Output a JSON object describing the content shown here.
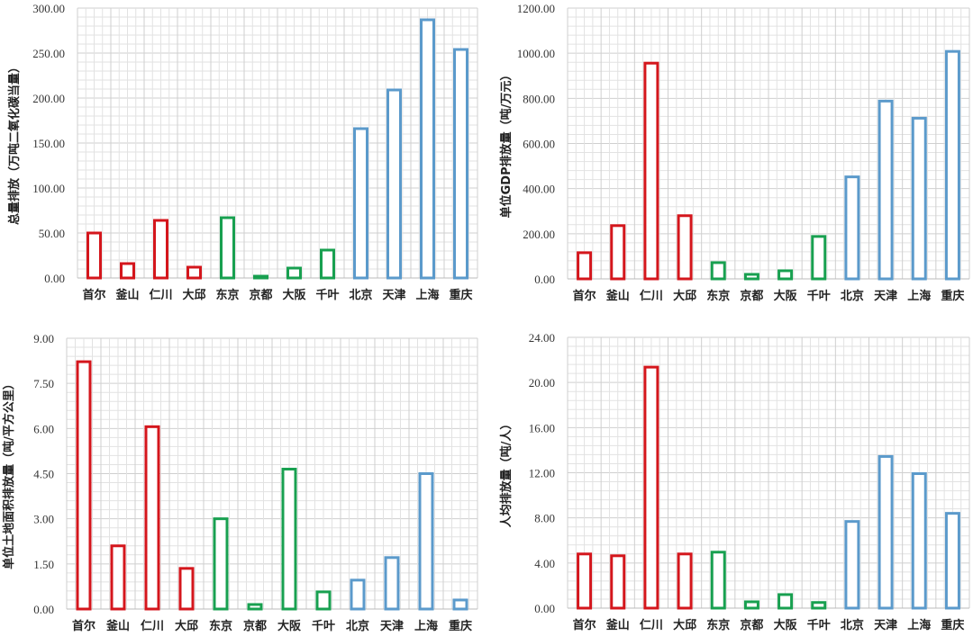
{
  "colors": {
    "korea": "#d4161c",
    "japan": "#18a050",
    "china": "#5b9acb",
    "grid": "#e2e2e2",
    "grid_major": "#cfcfcf"
  },
  "chart_data": [
    {
      "type": "bar",
      "title": "",
      "ylabel": "总量排放（万吨二氧化碳当量）",
      "categories": [
        "首尔",
        "釜山",
        "仁川",
        "大邱",
        "东京",
        "京都",
        "大阪",
        "千叶",
        "北京",
        "天津",
        "上海",
        "重庆"
      ],
      "groups": [
        "korea",
        "korea",
        "korea",
        "korea",
        "japan",
        "japan",
        "japan",
        "japan",
        "china",
        "china",
        "china",
        "china"
      ],
      "values": [
        50,
        16,
        64,
        12,
        67,
        2,
        11,
        31,
        166,
        209,
        287,
        254
      ],
      "ylim": [
        0,
        300
      ],
      "yticks": [
        "0.00",
        "50.00",
        "100.00",
        "150.00",
        "200.00",
        "250.00",
        "300.00"
      ],
      "grid": true
    },
    {
      "type": "bar",
      "title": "",
      "ylabel": "单位GDP排放量（吨/万元）",
      "categories": [
        "首尔",
        "釜山",
        "仁川",
        "大邱",
        "东京",
        "京都",
        "大阪",
        "千叶",
        "北京",
        "天津",
        "上海",
        "重庆"
      ],
      "groups": [
        "korea",
        "korea",
        "korea",
        "korea",
        "japan",
        "japan",
        "japan",
        "japan",
        "china",
        "china",
        "china",
        "china"
      ],
      "values": [
        116,
        236,
        956,
        280,
        72,
        20,
        36,
        188,
        452,
        788,
        712,
        1008
      ],
      "ylim": [
        0,
        1200
      ],
      "yticks": [
        "0.00",
        "200.00",
        "400.00",
        "600.00",
        "800.00",
        "1000.00",
        "1200.00"
      ],
      "grid": true
    },
    {
      "type": "bar",
      "title": "",
      "ylabel": "单位土地面积排放量（吨/平方公里）",
      "categories": [
        "首尔",
        "釜山",
        "仁川",
        "大邱",
        "东京",
        "京都",
        "大阪",
        "千叶",
        "北京",
        "天津",
        "上海",
        "重庆"
      ],
      "groups": [
        "korea",
        "korea",
        "korea",
        "korea",
        "japan",
        "japan",
        "japan",
        "japan",
        "china",
        "china",
        "china",
        "china"
      ],
      "values": [
        8.22,
        2.1,
        6.06,
        1.35,
        3.0,
        0.15,
        4.65,
        0.57,
        0.96,
        1.71,
        4.5,
        0.3
      ],
      "ylim": [
        0,
        9
      ],
      "yticks": [
        "0.00",
        "1.50",
        "3.00",
        "4.50",
        "6.00",
        "7.50",
        "9.00"
      ],
      "grid": true
    },
    {
      "type": "bar",
      "title": "",
      "ylabel": "人均排放量（吨/人）",
      "categories": [
        "首尔",
        "釜山",
        "仁川",
        "大邱",
        "东京",
        "京都",
        "大阪",
        "千叶",
        "北京",
        "天津",
        "上海",
        "重庆"
      ],
      "groups": [
        "korea",
        "korea",
        "korea",
        "korea",
        "japan",
        "japan",
        "japan",
        "japan",
        "china",
        "china",
        "china",
        "china"
      ],
      "values": [
        4.8,
        4.64,
        21.36,
        4.8,
        4.96,
        0.56,
        1.2,
        0.5,
        7.68,
        13.44,
        11.92,
        8.4
      ],
      "ylim": [
        0,
        24
      ],
      "yticks": [
        "0.00",
        "4.00",
        "8.00",
        "12.00",
        "16.00",
        "20.00",
        "24.00"
      ],
      "grid": true
    }
  ]
}
